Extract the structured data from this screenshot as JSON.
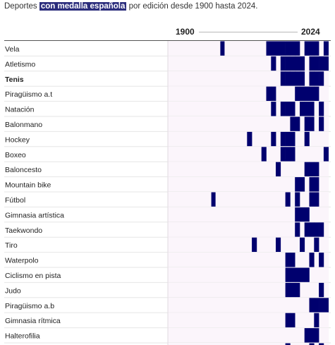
{
  "subtitle": {
    "before": "Deportes ",
    "highlight": "con medalla española",
    "after": " por edición desde 1900 hasta 2024."
  },
  "axis": {
    "start_label": "1900",
    "end_label": "2024"
  },
  "colors": {
    "medal": "#00006e",
    "track": "#fbf5fb",
    "row_line": "#e6e6e6",
    "highlight": "#2b2d7c"
  },
  "chart_data": {
    "type": "heatmap",
    "title": "",
    "subtitle": "Deportes con medalla española por edición desde 1900 hasta 2024.",
    "x": [
      1900,
      1904,
      1908,
      1912,
      1920,
      1924,
      1928,
      1932,
      1936,
      1948,
      1952,
      1956,
      1960,
      1964,
      1968,
      1972,
      1976,
      1980,
      1984,
      1988,
      1992,
      1996,
      2000,
      2004,
      2008,
      2012,
      2016,
      2020,
      2024
    ],
    "xlim": [
      1900,
      2024
    ],
    "legend": "none",
    "rows": [
      {
        "sport": "Vela",
        "bold": false,
        "medals": [
          1928,
          1976,
          1980,
          1984,
          1988,
          1992,
          1996,
          2000,
          2008,
          2012,
          2016,
          2024
        ]
      },
      {
        "sport": "Atletismo",
        "bold": false,
        "medals": [
          1980,
          1988,
          1992,
          1996,
          2000,
          2004,
          2012,
          2016,
          2020,
          2024
        ]
      },
      {
        "sport": "Tenis",
        "bold": true,
        "medals": [
          1988,
          1992,
          1996,
          2000,
          2004,
          2012,
          2016,
          2020
        ]
      },
      {
        "sport": "Piragüismo a.t",
        "bold": false,
        "medals": [
          1976,
          1980,
          2000,
          2004,
          2008,
          2012,
          2016
        ]
      },
      {
        "sport": "Natación",
        "bold": false,
        "medals": [
          1980,
          1988,
          1992,
          1996,
          2004,
          2008,
          2012,
          2020
        ]
      },
      {
        "sport": "Balonmano",
        "bold": false,
        "medals": [
          1996,
          2000,
          2008,
          2012,
          2020
        ]
      },
      {
        "sport": "Hockey",
        "bold": false,
        "medals": [
          1960,
          1980,
          1988,
          1992,
          1996,
          2008
        ]
      },
      {
        "sport": "Boxeo",
        "bold": false,
        "medals": [
          1972,
          1988,
          1992,
          1996,
          2024
        ]
      },
      {
        "sport": "Baloncesto",
        "bold": false,
        "medals": [
          1984,
          2008,
          2012,
          2016
        ]
      },
      {
        "sport": "Mountain bike",
        "bold": false,
        "medals": [
          2000,
          2004,
          2012,
          2016
        ]
      },
      {
        "sport": "Fútbol",
        "bold": false,
        "medals": [
          1920,
          1992,
          2000,
          2012,
          2016
        ]
      },
      {
        "sport": "Gimnasia artística",
        "bold": false,
        "medals": [
          2000,
          2004,
          2008
        ]
      },
      {
        "sport": "Taekwondo",
        "bold": false,
        "medals": [
          2000,
          2008,
          2012,
          2016,
          2020
        ]
      },
      {
        "sport": "Tiro",
        "bold": false,
        "medals": [
          1964,
          1984,
          2004,
          2016
        ]
      },
      {
        "sport": "Waterpolo",
        "bold": false,
        "medals": [
          1992,
          1996,
          2012,
          2020
        ]
      },
      {
        "sport": "Ciclismo en pista",
        "bold": false,
        "medals": [
          1992,
          1996,
          2000,
          2004,
          2008
        ]
      },
      {
        "sport": "Judo",
        "bold": false,
        "medals": [
          1992,
          1996,
          2000,
          2020
        ]
      },
      {
        "sport": "Piragüismo a.b",
        "bold": false,
        "medals": [
          2012,
          2016,
          2020,
          2024
        ]
      },
      {
        "sport": "Gimnasia rítmica",
        "bold": false,
        "medals": [
          1992,
          1996,
          2016
        ]
      },
      {
        "sport": "Halterofilia",
        "bold": false,
        "medals": [
          2008,
          2012,
          2016
        ]
      },
      {
        "sport": "",
        "bold": false,
        "medals": [
          1992,
          2012,
          2020
        ]
      }
    ]
  }
}
